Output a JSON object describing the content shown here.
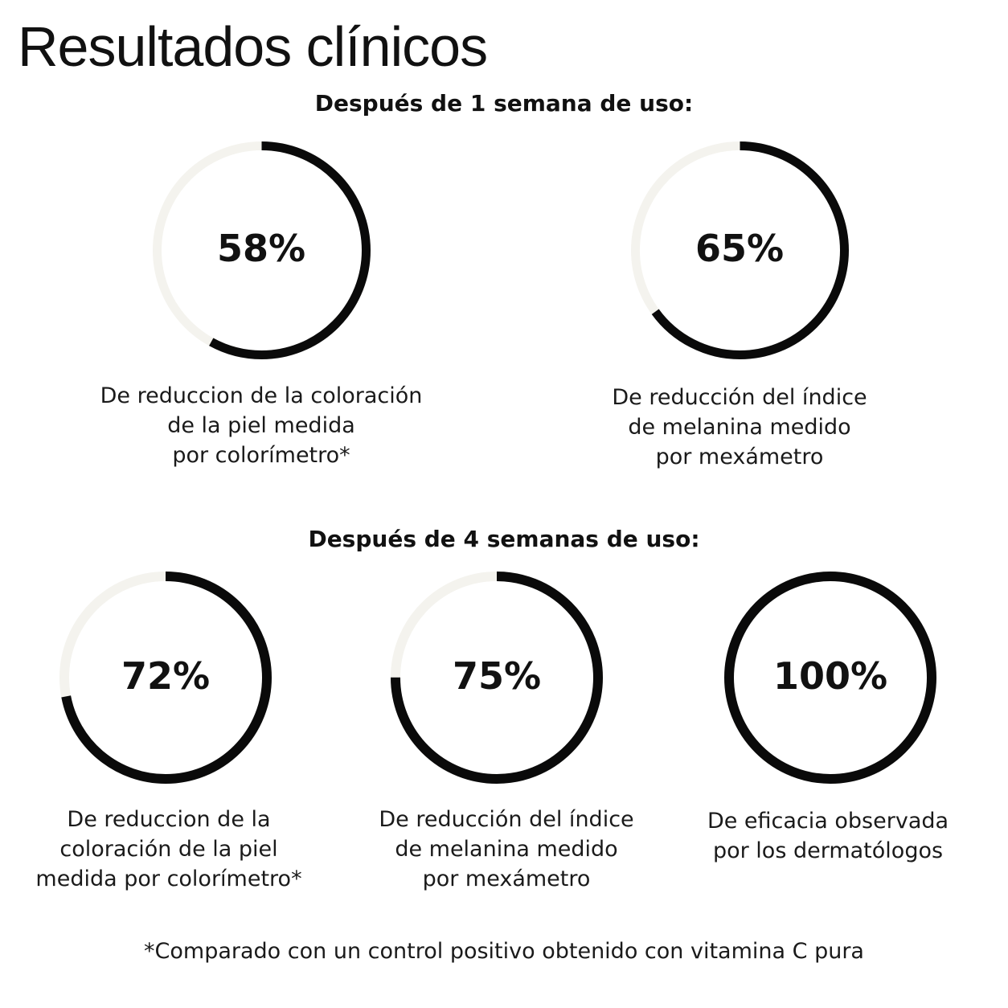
{
  "page": {
    "title": "Resultados clínicos",
    "footnote": "*Comparado con un control positivo obtenido con vitamina C pura"
  },
  "colors": {
    "ring_track": "#f4f3ee",
    "ring_fill": "#0a0a0a",
    "text": "#111111"
  },
  "chart_data": {
    "type": "donut",
    "sections": [
      {
        "heading": "Después de 1 semana de uso:",
        "stats": [
          {
            "label": "58%",
            "value": 58,
            "description": "De reduccion de la coloración\nde la piel medida\npor colorímetro*"
          },
          {
            "label": "65%",
            "value": 65,
            "description": "De reducción del índice\nde melanina medido\npor mexámetro"
          }
        ]
      },
      {
        "heading": "Después de 4 semanas de uso:",
        "stats": [
          {
            "label": "72%",
            "value": 72,
            "description": "De reduccion de la\ncoloración de la piel\nmedida por colorímetro*"
          },
          {
            "label": "75%",
            "value": 75,
            "description": "De reducción del índice\nde melanina medido\npor mexámetro"
          },
          {
            "label": "100%",
            "value": 100,
            "description": "De eficacia observada\npor los dermatólogos"
          }
        ]
      }
    ]
  }
}
